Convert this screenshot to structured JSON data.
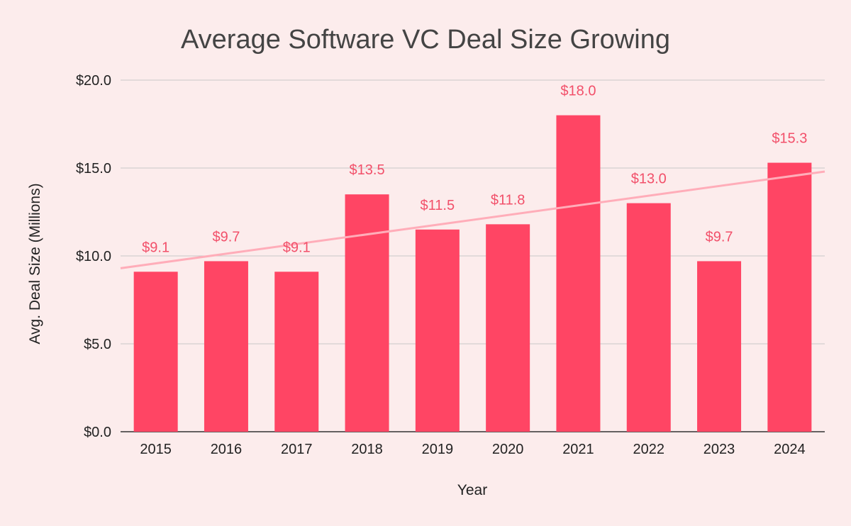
{
  "chart_data": {
    "type": "bar",
    "title": "Average Software VC Deal Size Growing",
    "xlabel": "Year",
    "ylabel": "Avg. Deal Size (Millions)",
    "categories": [
      "2015",
      "2016",
      "2017",
      "2018",
      "2019",
      "2020",
      "2021",
      "2022",
      "2023",
      "2024"
    ],
    "values": [
      9.1,
      9.7,
      9.1,
      13.5,
      11.5,
      11.8,
      18.0,
      13.0,
      9.7,
      15.3
    ],
    "data_labels": [
      "$9.1",
      "$9.7",
      "$9.1",
      "$13.5",
      "$11.5",
      "$11.8",
      "$18.0",
      "$13.0",
      "$9.7",
      "$15.3"
    ],
    "ylim": [
      0,
      20
    ],
    "yticks": [
      0,
      5,
      10,
      15,
      20
    ],
    "ytick_labels": [
      "$0.0",
      "$5.0",
      "$10.0",
      "$15.0",
      "$20.0"
    ],
    "grid": true,
    "legend": "none",
    "trendline": {
      "type": "linear",
      "start": 9.3,
      "end": 14.8
    },
    "colors": {
      "background": "#fcecec",
      "bar": "#ff4564",
      "label": "#f2506a",
      "trendline": "#ffadb9",
      "grid": "#c8c8c8",
      "axis": "#333333"
    }
  }
}
